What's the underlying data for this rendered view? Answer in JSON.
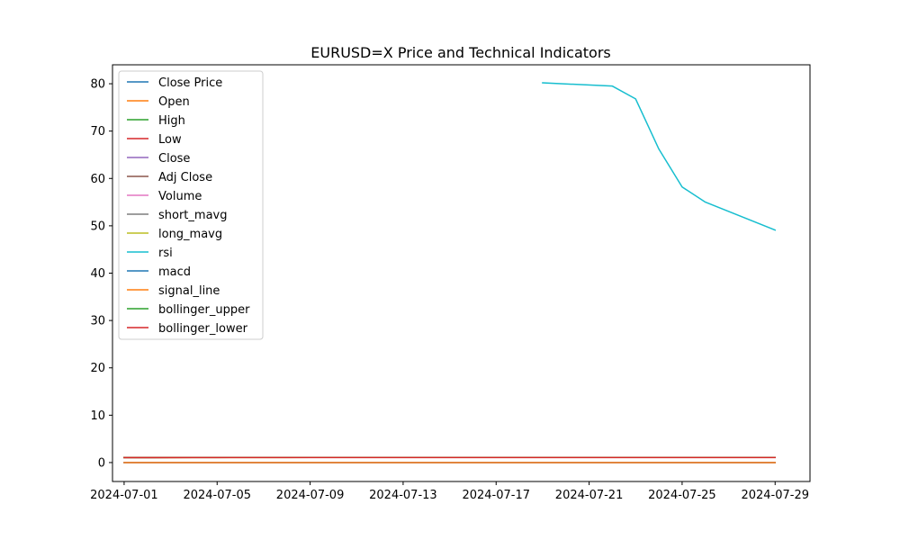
{
  "chart_data": {
    "type": "line",
    "title": "EURUSD=X Price and Technical Indicators",
    "xlabel": "",
    "ylabel": "",
    "x_range": [
      "2024-06-30T12:00",
      "2024-07-30T12:00"
    ],
    "ylim": [
      -4.0,
      84.0
    ],
    "x_ticks": [
      "2024-07-01",
      "2024-07-05",
      "2024-07-09",
      "2024-07-13",
      "2024-07-17",
      "2024-07-21",
      "2024-07-25",
      "2024-07-29"
    ],
    "y_ticks": [
      0,
      10,
      20,
      30,
      40,
      50,
      60,
      70,
      80
    ],
    "y_tick_labels": [
      "0",
      "10",
      "20",
      "30",
      "40",
      "50",
      "60",
      "70",
      "80"
    ],
    "grid": false,
    "legend_position": "top-left",
    "x": [
      "2024-07-01",
      "2024-07-02",
      "2024-07-03",
      "2024-07-04",
      "2024-07-05",
      "2024-07-08",
      "2024-07-09",
      "2024-07-10",
      "2024-07-11",
      "2024-07-12",
      "2024-07-15",
      "2024-07-16",
      "2024-07-17",
      "2024-07-18",
      "2024-07-19",
      "2024-07-22",
      "2024-07-23",
      "2024-07-24",
      "2024-07-25",
      "2024-07-26",
      "2024-07-29"
    ],
    "series": [
      {
        "name": "Close Price",
        "color": "#1f77b4",
        "values": [
          1.07,
          1.07,
          1.08,
          1.08,
          1.08,
          1.08,
          1.08,
          1.08,
          1.09,
          1.09,
          1.09,
          1.09,
          1.09,
          1.09,
          1.09,
          1.09,
          1.09,
          1.08,
          1.08,
          1.09,
          1.08
        ]
      },
      {
        "name": "Open",
        "color": "#ff7f0e",
        "values": [
          1.07,
          1.07,
          1.07,
          1.08,
          1.08,
          1.08,
          1.08,
          1.08,
          1.08,
          1.09,
          1.09,
          1.09,
          1.09,
          1.09,
          1.09,
          1.09,
          1.09,
          1.09,
          1.08,
          1.08,
          1.09
        ]
      },
      {
        "name": "High",
        "color": "#2ca02c",
        "values": [
          1.08,
          1.07,
          1.08,
          1.08,
          1.08,
          1.08,
          1.08,
          1.08,
          1.09,
          1.09,
          1.09,
          1.09,
          1.09,
          1.09,
          1.09,
          1.09,
          1.09,
          1.09,
          1.09,
          1.09,
          1.09
        ]
      },
      {
        "name": "Low",
        "color": "#d62728",
        "values": [
          1.07,
          1.07,
          1.07,
          1.08,
          1.08,
          1.08,
          1.08,
          1.08,
          1.08,
          1.09,
          1.09,
          1.09,
          1.09,
          1.09,
          1.09,
          1.08,
          1.08,
          1.08,
          1.08,
          1.08,
          1.08
        ]
      },
      {
        "name": "Close",
        "color": "#9467bd",
        "values": [
          1.07,
          1.07,
          1.08,
          1.08,
          1.08,
          1.08,
          1.08,
          1.08,
          1.09,
          1.09,
          1.09,
          1.09,
          1.09,
          1.09,
          1.09,
          1.09,
          1.09,
          1.08,
          1.08,
          1.09,
          1.08
        ]
      },
      {
        "name": "Adj Close",
        "color": "#8c564b",
        "values": [
          1.07,
          1.07,
          1.08,
          1.08,
          1.08,
          1.08,
          1.08,
          1.08,
          1.09,
          1.09,
          1.09,
          1.09,
          1.09,
          1.09,
          1.09,
          1.09,
          1.09,
          1.08,
          1.08,
          1.09,
          1.08
        ]
      },
      {
        "name": "Volume",
        "color": "#e377c2",
        "values": [
          0,
          0,
          0,
          0,
          0,
          0,
          0,
          0,
          0,
          0,
          0,
          0,
          0,
          0,
          0,
          0,
          0,
          0,
          0,
          0,
          0
        ]
      },
      {
        "name": "short_mavg",
        "color": "#7f7f7f",
        "values": [
          1.07,
          1.07,
          1.07,
          1.07,
          1.07,
          1.08,
          1.08,
          1.08,
          1.08,
          1.08,
          1.08,
          1.08,
          1.09,
          1.09,
          1.09,
          1.09,
          1.09,
          1.09,
          1.09,
          1.09,
          1.09
        ]
      },
      {
        "name": "long_mavg",
        "color": "#bcbd22",
        "values": [
          1.07,
          1.07,
          1.07,
          1.07,
          1.07,
          1.07,
          1.08,
          1.08,
          1.08,
          1.08,
          1.08,
          1.08,
          1.08,
          1.08,
          1.08,
          1.08,
          1.08,
          1.08,
          1.08,
          1.08,
          1.08
        ]
      },
      {
        "name": "rsi",
        "color": "#17becf",
        "values": [
          null,
          null,
          null,
          null,
          null,
          null,
          null,
          null,
          null,
          null,
          null,
          null,
          null,
          null,
          80.2,
          79.5,
          76.8,
          66.2,
          58.2,
          55.0,
          49.1
        ]
      },
      {
        "name": "macd",
        "color": "#1f77b4",
        "values": [
          0,
          0,
          0,
          0,
          0,
          0,
          0,
          0,
          0,
          0,
          0,
          0,
          0,
          0,
          0,
          0,
          0,
          0,
          0,
          0,
          0
        ]
      },
      {
        "name": "signal_line",
        "color": "#ff7f0e",
        "values": [
          0,
          0,
          0,
          0,
          0,
          0,
          0,
          0,
          0,
          0,
          0,
          0,
          0,
          0,
          0,
          0,
          0,
          0,
          0,
          0,
          0
        ]
      },
      {
        "name": "bollinger_upper",
        "color": "#2ca02c",
        "values": [
          1.09,
          1.09,
          1.09,
          1.09,
          1.09,
          1.09,
          1.09,
          1.09,
          1.09,
          1.09,
          1.09,
          1.09,
          1.09,
          1.09,
          1.09,
          1.09,
          1.09,
          1.09,
          1.09,
          1.09,
          1.09
        ]
      },
      {
        "name": "bollinger_lower",
        "color": "#d62728",
        "values": [
          1.06,
          1.06,
          1.06,
          1.06,
          1.06,
          1.07,
          1.07,
          1.07,
          1.07,
          1.07,
          1.07,
          1.07,
          1.07,
          1.07,
          1.07,
          1.07,
          1.07,
          1.07,
          1.07,
          1.07,
          1.07
        ]
      }
    ]
  }
}
